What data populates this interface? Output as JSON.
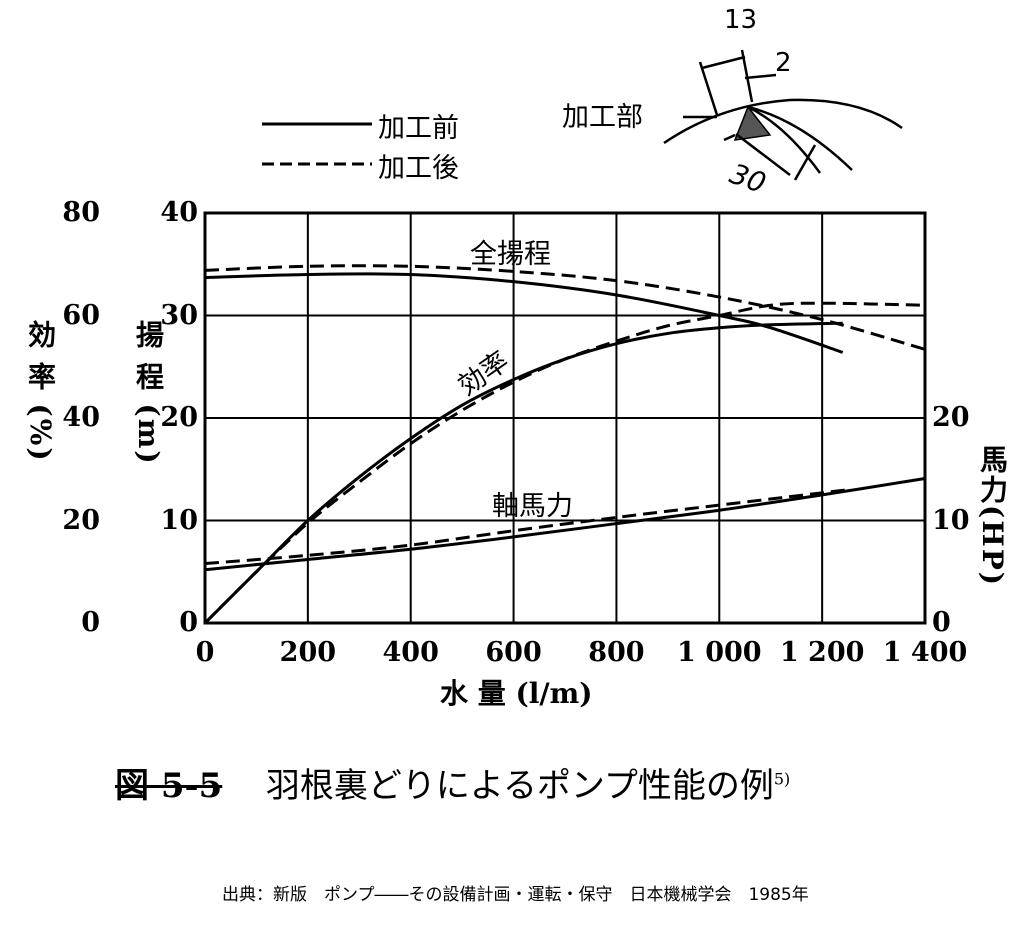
{
  "legend": {
    "before": "加工前",
    "after": "加工後"
  },
  "inset": {
    "label": "加工部",
    "dim_width": "13",
    "dim_depth": "2",
    "dim_length": "30"
  },
  "caption": {
    "figure_no": "図 5-5",
    "title": "羽根裏どりによるポンプ性能の例",
    "ref": "5)"
  },
  "source": "出典：新版　ポンプ――その設備計画・運転・保守　日本機械学会　1985年",
  "chart_data": {
    "type": "line",
    "title": "羽根裏どりによるポンプ性能の例",
    "xlabel": "水 量 (l/m)",
    "ylabel_efficiency": "効 率 (%)",
    "ylabel_head": "揚 程 (m)",
    "ylabel_power": "馬力(HP)",
    "xlim": [
      0,
      1400
    ],
    "ylim_head": [
      0,
      40
    ],
    "ylim_efficiency": [
      0,
      80
    ],
    "ylim_power": [
      0,
      40
    ],
    "x_ticks": [
      "0",
      "200",
      "400",
      "600",
      "800",
      "1 000",
      "1 200",
      "1 400"
    ],
    "efficiency_ticks": [
      "0",
      "20",
      "40",
      "60",
      "80"
    ],
    "head_ticks": [
      "0",
      "10",
      "20",
      "30",
      "40"
    ],
    "power_ticks": [
      "0",
      "10",
      "20"
    ],
    "curve_labels": {
      "head": "全揚程",
      "efficiency": "効率",
      "power": "軸馬力"
    },
    "grid": true,
    "series": [
      {
        "name": "全揚程 加工前",
        "unit": "m",
        "style": "solid",
        "x": [
          0,
          200,
          400,
          600,
          800,
          1000,
          1100,
          1240
        ],
        "y": [
          33.7,
          34.0,
          34.0,
          33.3,
          32.0,
          30.0,
          28.8,
          26.4
        ]
      },
      {
        "name": "全揚程 加工後",
        "unit": "m",
        "style": "dashed",
        "x": [
          0,
          200,
          400,
          600,
          800,
          1000,
          1200,
          1400
        ],
        "y": [
          34.4,
          34.8,
          34.8,
          34.3,
          33.4,
          31.8,
          29.6,
          26.7
        ]
      },
      {
        "name": "効率 加工前",
        "unit": "%",
        "style": "solid",
        "x": [
          0,
          100,
          200,
          300,
          400,
          500,
          600,
          700,
          800,
          900,
          1000,
          1100,
          1240
        ],
        "y": [
          0,
          10,
          20,
          28.5,
          36,
          42.5,
          47.5,
          51.5,
          54.5,
          56.5,
          57.6,
          58.2,
          58.5
        ]
      },
      {
        "name": "効率 加工後",
        "unit": "%",
        "style": "dashed",
        "x": [
          0,
          100,
          200,
          300,
          400,
          500,
          600,
          700,
          800,
          900,
          1000,
          1100,
          1200,
          1400
        ],
        "y": [
          0,
          10,
          19.5,
          27.5,
          35,
          41.5,
          47,
          51.5,
          55,
          58,
          60,
          62,
          62.4,
          62
        ]
      },
      {
        "name": "軸馬力 加工前",
        "unit": "HP",
        "style": "solid",
        "x": [
          0,
          200,
          400,
          600,
          800,
          1000,
          1200,
          1400
        ],
        "y": [
          5.2,
          6.2,
          7.2,
          8.4,
          9.7,
          11.0,
          12.5,
          14.1
        ]
      },
      {
        "name": "軸馬力 加工後",
        "unit": "HP",
        "style": "dashed",
        "x": [
          0,
          200,
          400,
          600,
          800,
          1000,
          1200,
          1250
        ],
        "y": [
          5.8,
          6.6,
          7.6,
          9.0,
          10.3,
          11.5,
          12.7,
          13.0
        ]
      }
    ]
  }
}
